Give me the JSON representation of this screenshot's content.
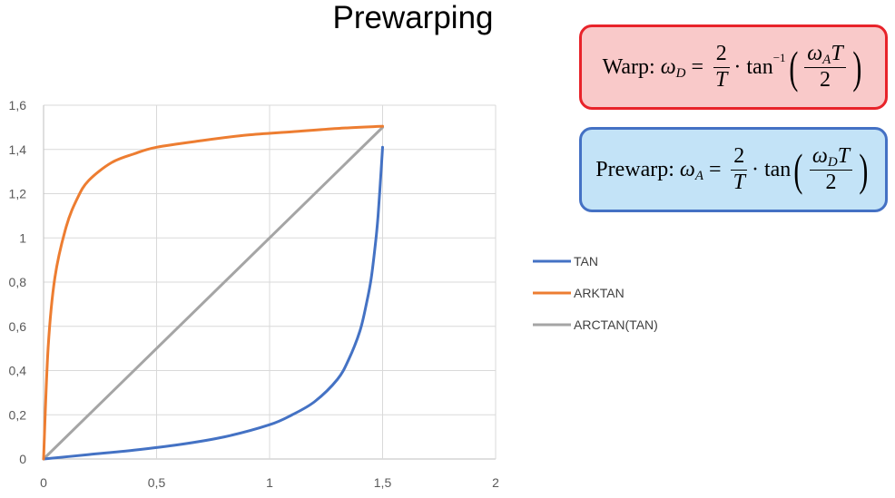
{
  "chart_data": {
    "type": "line",
    "title": "Prewarping",
    "xlabel": "",
    "ylabel": "",
    "xlim": [
      0,
      2
    ],
    "ylim": [
      0,
      1.6
    ],
    "x_ticks": [
      "0",
      "0,5",
      "1",
      "1,5",
      "2"
    ],
    "y_ticks": [
      "0",
      "0,2",
      "0,4",
      "0,6",
      "0,8",
      "1",
      "1,2",
      "1,4",
      "1,6"
    ],
    "grid": true,
    "legend_position": "right",
    "series": [
      {
        "name": "TAN",
        "color": "#4472c4",
        "x": [
          0,
          0.2,
          0.4,
          0.6,
          0.8,
          1.0,
          1.1,
          1.2,
          1.3,
          1.35,
          1.4,
          1.43,
          1.45,
          1.47,
          1.48,
          1.49,
          1.5
        ],
        "y": [
          0,
          0.02,
          0.04,
          0.065,
          0.1,
          0.155,
          0.2,
          0.26,
          0.36,
          0.45,
          0.58,
          0.71,
          0.82,
          0.99,
          1.1,
          1.25,
          1.41
        ]
      },
      {
        "name": "ARKTAN",
        "color": "#ed7d31",
        "x": [
          0,
          0.02,
          0.05,
          0.1,
          0.15,
          0.2,
          0.3,
          0.4,
          0.5,
          0.7,
          0.9,
          1.1,
          1.3,
          1.5
        ],
        "y": [
          0,
          0.5,
          0.82,
          1.05,
          1.18,
          1.26,
          1.34,
          1.38,
          1.41,
          1.44,
          1.465,
          1.48,
          1.495,
          1.505
        ]
      },
      {
        "name": "ARCTAN(TAN)",
        "color": "#a5a5a5",
        "x": [
          0,
          1.5
        ],
        "y": [
          0,
          1.5
        ]
      }
    ]
  },
  "formulas": {
    "warp": {
      "label": "Warp:",
      "omega": "ω",
      "lhs_sub": "D",
      "equals": "=",
      "frac_num": "2",
      "frac_den": "T",
      "dot": "·",
      "func": "tan",
      "func_sup": "−1",
      "arg_omega": "ω",
      "arg_sub": "A",
      "arg_T": "T",
      "arg_den": "2"
    },
    "prewarp": {
      "label": "Prewarp:",
      "omega": "ω",
      "lhs_sub": "A",
      "equals": "=",
      "frac_num": "2",
      "frac_den": "T",
      "dot": "·",
      "func": "tan",
      "arg_omega": "ω",
      "arg_sub": "D",
      "arg_T": "T",
      "arg_den": "2"
    },
    "colors": {
      "warp_fill": "#f9c9c9",
      "warp_border": "#e8232a",
      "prewarp_fill": "#c3e3f7",
      "prewarp_border": "#4471c4"
    }
  }
}
